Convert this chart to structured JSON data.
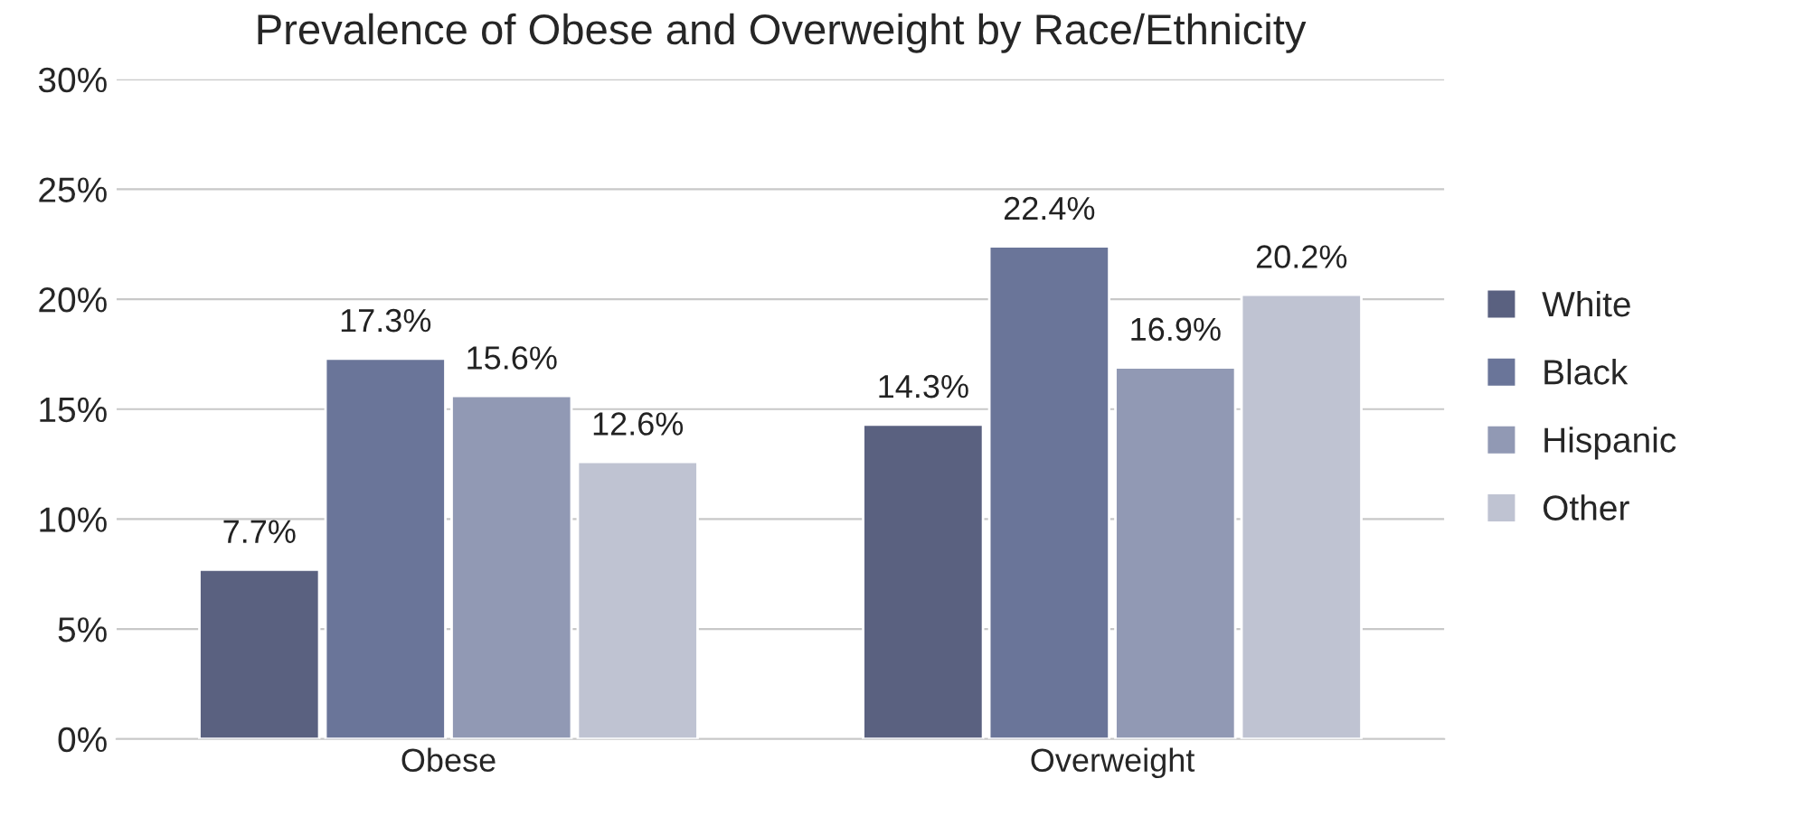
{
  "chart_data": {
    "type": "bar",
    "title": "Prevalence of Obese and Overweight by Race/Ethnicity",
    "categories": [
      "Obese",
      "Overweight"
    ],
    "series": [
      {
        "name": "White",
        "color": "#5a6180",
        "values": [
          7.7,
          14.3
        ],
        "value_labels": [
          "7.7%",
          "14.3%"
        ]
      },
      {
        "name": "Black",
        "color": "#6a7599",
        "values": [
          17.3,
          22.4
        ],
        "value_labels": [
          "17.3%",
          "22.4%"
        ]
      },
      {
        "name": "Hispanic",
        "color": "#9199b4",
        "values": [
          15.6,
          16.9
        ],
        "value_labels": [
          "15.6%",
          "16.9%"
        ]
      },
      {
        "name": "Other",
        "color": "#bfc3d2",
        "values": [
          12.6,
          20.2
        ],
        "value_labels": [
          "12.6%",
          "20.2%"
        ]
      }
    ],
    "ylim": [
      0,
      30
    ],
    "yticks": [
      {
        "value": 0,
        "label": "0%"
      },
      {
        "value": 5,
        "label": "5%"
      },
      {
        "value": 10,
        "label": "10%"
      },
      {
        "value": 15,
        "label": "15%"
      },
      {
        "value": 20,
        "label": "20%"
      },
      {
        "value": 25,
        "label": "25%"
      },
      {
        "value": 30,
        "label": "30%"
      }
    ],
    "grid": "y",
    "legend": "right"
  }
}
